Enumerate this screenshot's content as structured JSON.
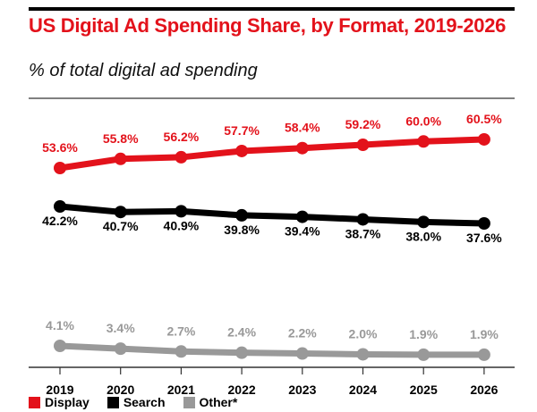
{
  "chart_data": {
    "type": "line",
    "title": "US Digital Ad Spending Share, by Format, 2019-2026",
    "subtitle": "% of total digital ad spending",
    "categories": [
      "2019",
      "2020",
      "2021",
      "2022",
      "2023",
      "2024",
      "2025",
      "2026"
    ],
    "series": [
      {
        "name": "Display",
        "color": "#e3121b",
        "values": [
          53.6,
          55.8,
          56.2,
          57.7,
          58.4,
          59.2,
          60.0,
          60.5
        ],
        "labels": [
          "53.6%",
          "55.8%",
          "56.2%",
          "57.7%",
          "58.4%",
          "59.2%",
          "60.0%",
          "60.5%"
        ]
      },
      {
        "name": "Search",
        "color": "#000000",
        "values": [
          42.2,
          40.7,
          40.9,
          39.8,
          39.4,
          38.7,
          38.0,
          37.6
        ],
        "labels": [
          "42.2%",
          "40.7%",
          "40.9%",
          "39.8%",
          "39.4%",
          "38.7%",
          "38.0%",
          "37.6%"
        ]
      },
      {
        "name": "Other*",
        "color": "#999999",
        "values": [
          4.1,
          3.4,
          2.7,
          2.4,
          2.2,
          2.0,
          1.9,
          1.9
        ],
        "labels": [
          "4.1%",
          "3.4%",
          "2.7%",
          "2.4%",
          "2.2%",
          "2.0%",
          "1.9%",
          "1.9%"
        ]
      }
    ],
    "legend_position": "bottom-left",
    "grid": false
  }
}
